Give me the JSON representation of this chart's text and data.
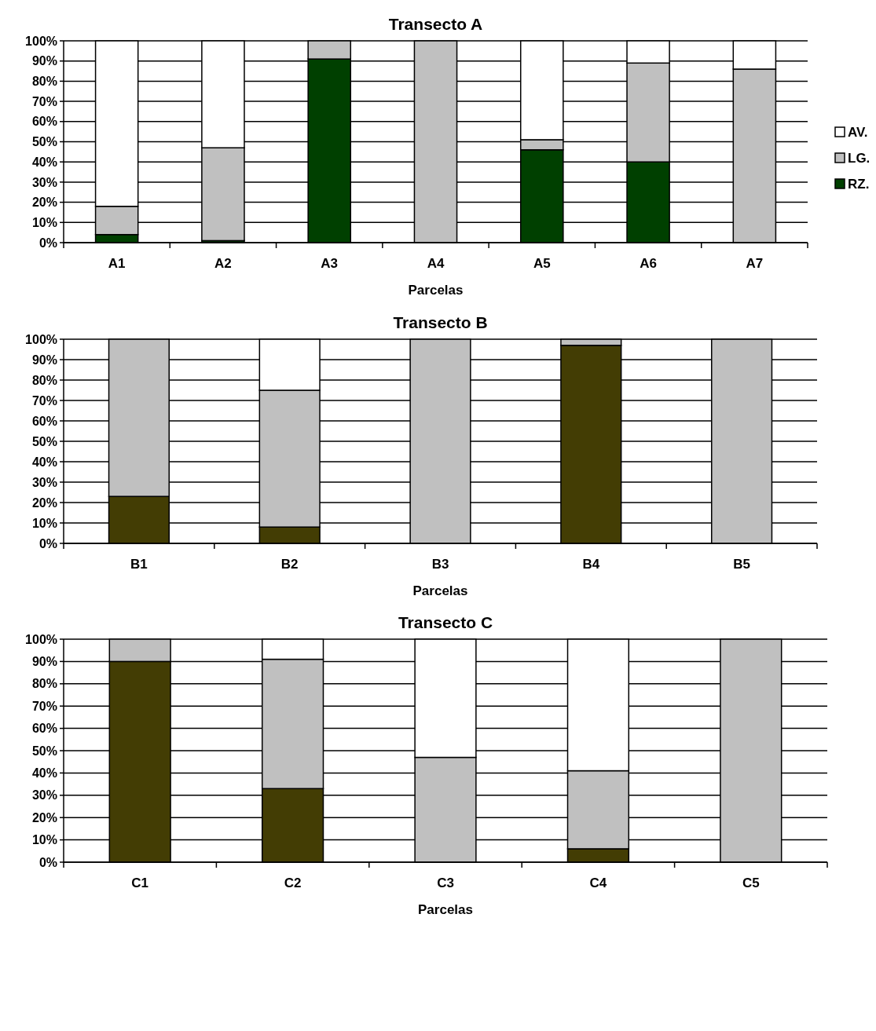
{
  "chart_data": [
    {
      "type": "bar",
      "title": "Transecto A",
      "xlabel": "Parcelas",
      "categories": [
        "A1",
        "A2",
        "A3",
        "A4",
        "A5",
        "A6",
        "A7"
      ],
      "stacked": true,
      "ylim": [
        0,
        100
      ],
      "yticks": [
        {
          "value": 0,
          "label": "0%"
        },
        {
          "value": 10,
          "label": "10%"
        },
        {
          "value": 20,
          "label": "20%"
        },
        {
          "value": 30,
          "label": "30%"
        },
        {
          "value": 40,
          "label": "40%"
        },
        {
          "value": 50,
          "label": "50%"
        },
        {
          "value": 60,
          "label": "60%"
        },
        {
          "value": 70,
          "label": "70%"
        },
        {
          "value": 80,
          "label": "80%"
        },
        {
          "value": 90,
          "label": "90%"
        },
        {
          "value": 100,
          "label": "100%"
        }
      ],
      "grid": "y",
      "legend": "right",
      "series": [
        {
          "name": "RZ.",
          "color": "#004000",
          "values": [
            4,
            1,
            91,
            0,
            46,
            40,
            0
          ]
        },
        {
          "name": "LG.",
          "color": "#c0c0c0",
          "values": [
            14,
            46,
            9,
            100,
            5,
            49,
            86
          ]
        },
        {
          "name": "AV.",
          "color": "#ffffff",
          "values": [
            82,
            53,
            0,
            0,
            49,
            11,
            14
          ]
        }
      ]
    },
    {
      "type": "bar",
      "title": "Transecto B",
      "xlabel": "Parcelas",
      "categories": [
        "B1",
        "B2",
        "B3",
        "B4",
        "B5"
      ],
      "stacked": true,
      "ylim": [
        0,
        100
      ],
      "yticks": [
        {
          "value": 0,
          "label": "0%"
        },
        {
          "value": 10,
          "label": "10%"
        },
        {
          "value": 20,
          "label": "20%"
        },
        {
          "value": 30,
          "label": "30%"
        },
        {
          "value": 40,
          "label": "40%"
        },
        {
          "value": 50,
          "label": "50%"
        },
        {
          "value": 60,
          "label": "60%"
        },
        {
          "value": 70,
          "label": "70%"
        },
        {
          "value": 80,
          "label": "80%"
        },
        {
          "value": 90,
          "label": "90%"
        },
        {
          "value": 100,
          "label": "100%"
        }
      ],
      "grid": "y",
      "series": [
        {
          "color": "#433d04",
          "values": [
            23,
            8,
            0,
            97,
            0
          ]
        },
        {
          "color": "#c0c0c0",
          "values": [
            77,
            67,
            100,
            3,
            100
          ]
        },
        {
          "color": "#ffffff",
          "values": [
            0,
            25,
            0,
            0,
            0
          ]
        }
      ]
    },
    {
      "type": "bar",
      "title": "Transecto C",
      "xlabel": "Parcelas",
      "categories": [
        "C1",
        "C2",
        "C3",
        "C4",
        "C5"
      ],
      "stacked": true,
      "ylim": [
        0,
        100
      ],
      "yticks": [
        {
          "value": 0,
          "label": "0%"
        },
        {
          "value": 10,
          "label": "10%"
        },
        {
          "value": 20,
          "label": "20%"
        },
        {
          "value": 30,
          "label": "30%"
        },
        {
          "value": 40,
          "label": "40%"
        },
        {
          "value": 50,
          "label": "50%"
        },
        {
          "value": 60,
          "label": "60%"
        },
        {
          "value": 70,
          "label": "70%"
        },
        {
          "value": 80,
          "label": "80%"
        },
        {
          "value": 90,
          "label": "90%"
        },
        {
          "value": 100,
          "label": "100%"
        }
      ],
      "grid": "y",
      "series": [
        {
          "color": "#433d04",
          "values": [
            90,
            33,
            0,
            6,
            0
          ]
        },
        {
          "color": "#c0c0c0",
          "values": [
            10,
            58,
            47,
            35,
            100
          ]
        },
        {
          "color": "#ffffff",
          "values": [
            0,
            9,
            53,
            59,
            0
          ]
        }
      ]
    }
  ]
}
